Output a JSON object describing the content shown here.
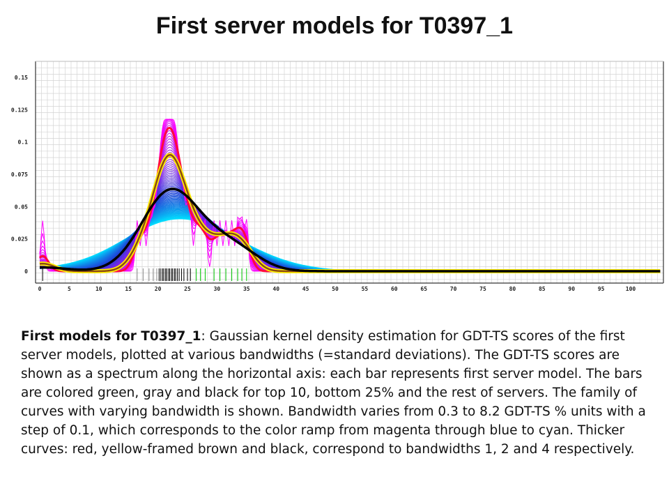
{
  "title": "First server models for T0397_1",
  "caption": {
    "lead": "First models for T0397_1",
    "body": ": Gaussian kernel density estimation for GDT-TS scores of the first server models, plotted at various bandwidths (=standard deviations). The GDT-TS scores are shown as a spectrum along the horizontal axis: each bar represents first server model. The bars are colored green, gray and black for top 10, bottom 25% and the rest of servers. The family of curves with varying bandwidth is shown. Bandwidth varies from 0.3 to 8.2 GDT-TS % units with a step of 0.1, which corresponds to the color ramp from magenta through blue to cyan. Thicker curves: red, yellow-framed brown and black, correspond to bandwidths 1, 2 and 4 respectively."
  },
  "chart_data": {
    "type": "line",
    "title": "First server models for T0397_1",
    "xlabel": "",
    "ylabel": "",
    "xlim": [
      0,
      105
    ],
    "ylim": [
      0,
      0.16
    ],
    "grid": true,
    "x_ticks": [
      "0",
      "5",
      "10",
      "15",
      "20",
      "25",
      "30",
      "35",
      "40",
      "45",
      "50",
      "55",
      "60",
      "65",
      "70",
      "75",
      "80",
      "85",
      "90",
      "95",
      "100"
    ],
    "y_ticks": [
      "0",
      "0.025",
      "0.05",
      "0.075",
      "0.1",
      "0.125",
      "0.15"
    ],
    "bandwidth_range": [
      0.3,
      8.2
    ],
    "bandwidth_step": 0.1,
    "color_ramp": [
      "#ff00ff",
      "#1f3fd6",
      "#00e0ff"
    ],
    "highlight_curves": [
      {
        "bandwidth": 1,
        "color": "#ff0a3c"
      },
      {
        "bandwidth": 2,
        "color": "#8b4a14",
        "frame_color": "#ffee00"
      },
      {
        "bandwidth": 4,
        "color": "#000000"
      }
    ],
    "spectrum": [
      {
        "x": 0.5,
        "group": "rest"
      },
      {
        "x": 16.5,
        "group": "bottom"
      },
      {
        "x": 17.5,
        "group": "bottom"
      },
      {
        "x": 18.5,
        "group": "bottom"
      },
      {
        "x": 19.2,
        "group": "bottom"
      },
      {
        "x": 19.8,
        "group": "bottom"
      },
      {
        "x": 20.2,
        "group": "rest"
      },
      {
        "x": 20.5,
        "group": "rest"
      },
      {
        "x": 20.8,
        "group": "rest"
      },
      {
        "x": 21.0,
        "group": "rest"
      },
      {
        "x": 21.3,
        "group": "rest"
      },
      {
        "x": 21.5,
        "group": "rest"
      },
      {
        "x": 21.8,
        "group": "rest"
      },
      {
        "x": 22.0,
        "group": "rest"
      },
      {
        "x": 22.3,
        "group": "rest"
      },
      {
        "x": 22.5,
        "group": "rest"
      },
      {
        "x": 22.8,
        "group": "rest"
      },
      {
        "x": 23.0,
        "group": "rest"
      },
      {
        "x": 23.3,
        "group": "rest"
      },
      {
        "x": 23.6,
        "group": "rest"
      },
      {
        "x": 24.0,
        "group": "rest"
      },
      {
        "x": 24.4,
        "group": "rest"
      },
      {
        "x": 25.0,
        "group": "rest"
      },
      {
        "x": 25.5,
        "group": "rest"
      },
      {
        "x": 26.5,
        "group": "top"
      },
      {
        "x": 27.2,
        "group": "top"
      },
      {
        "x": 28.0,
        "group": "top"
      },
      {
        "x": 29.5,
        "group": "top"
      },
      {
        "x": 30.5,
        "group": "top"
      },
      {
        "x": 31.5,
        "group": "top"
      },
      {
        "x": 32.5,
        "group": "top"
      },
      {
        "x": 33.5,
        "group": "top"
      },
      {
        "x": 34.2,
        "group": "top"
      },
      {
        "x": 35.0,
        "group": "top"
      }
    ]
  }
}
